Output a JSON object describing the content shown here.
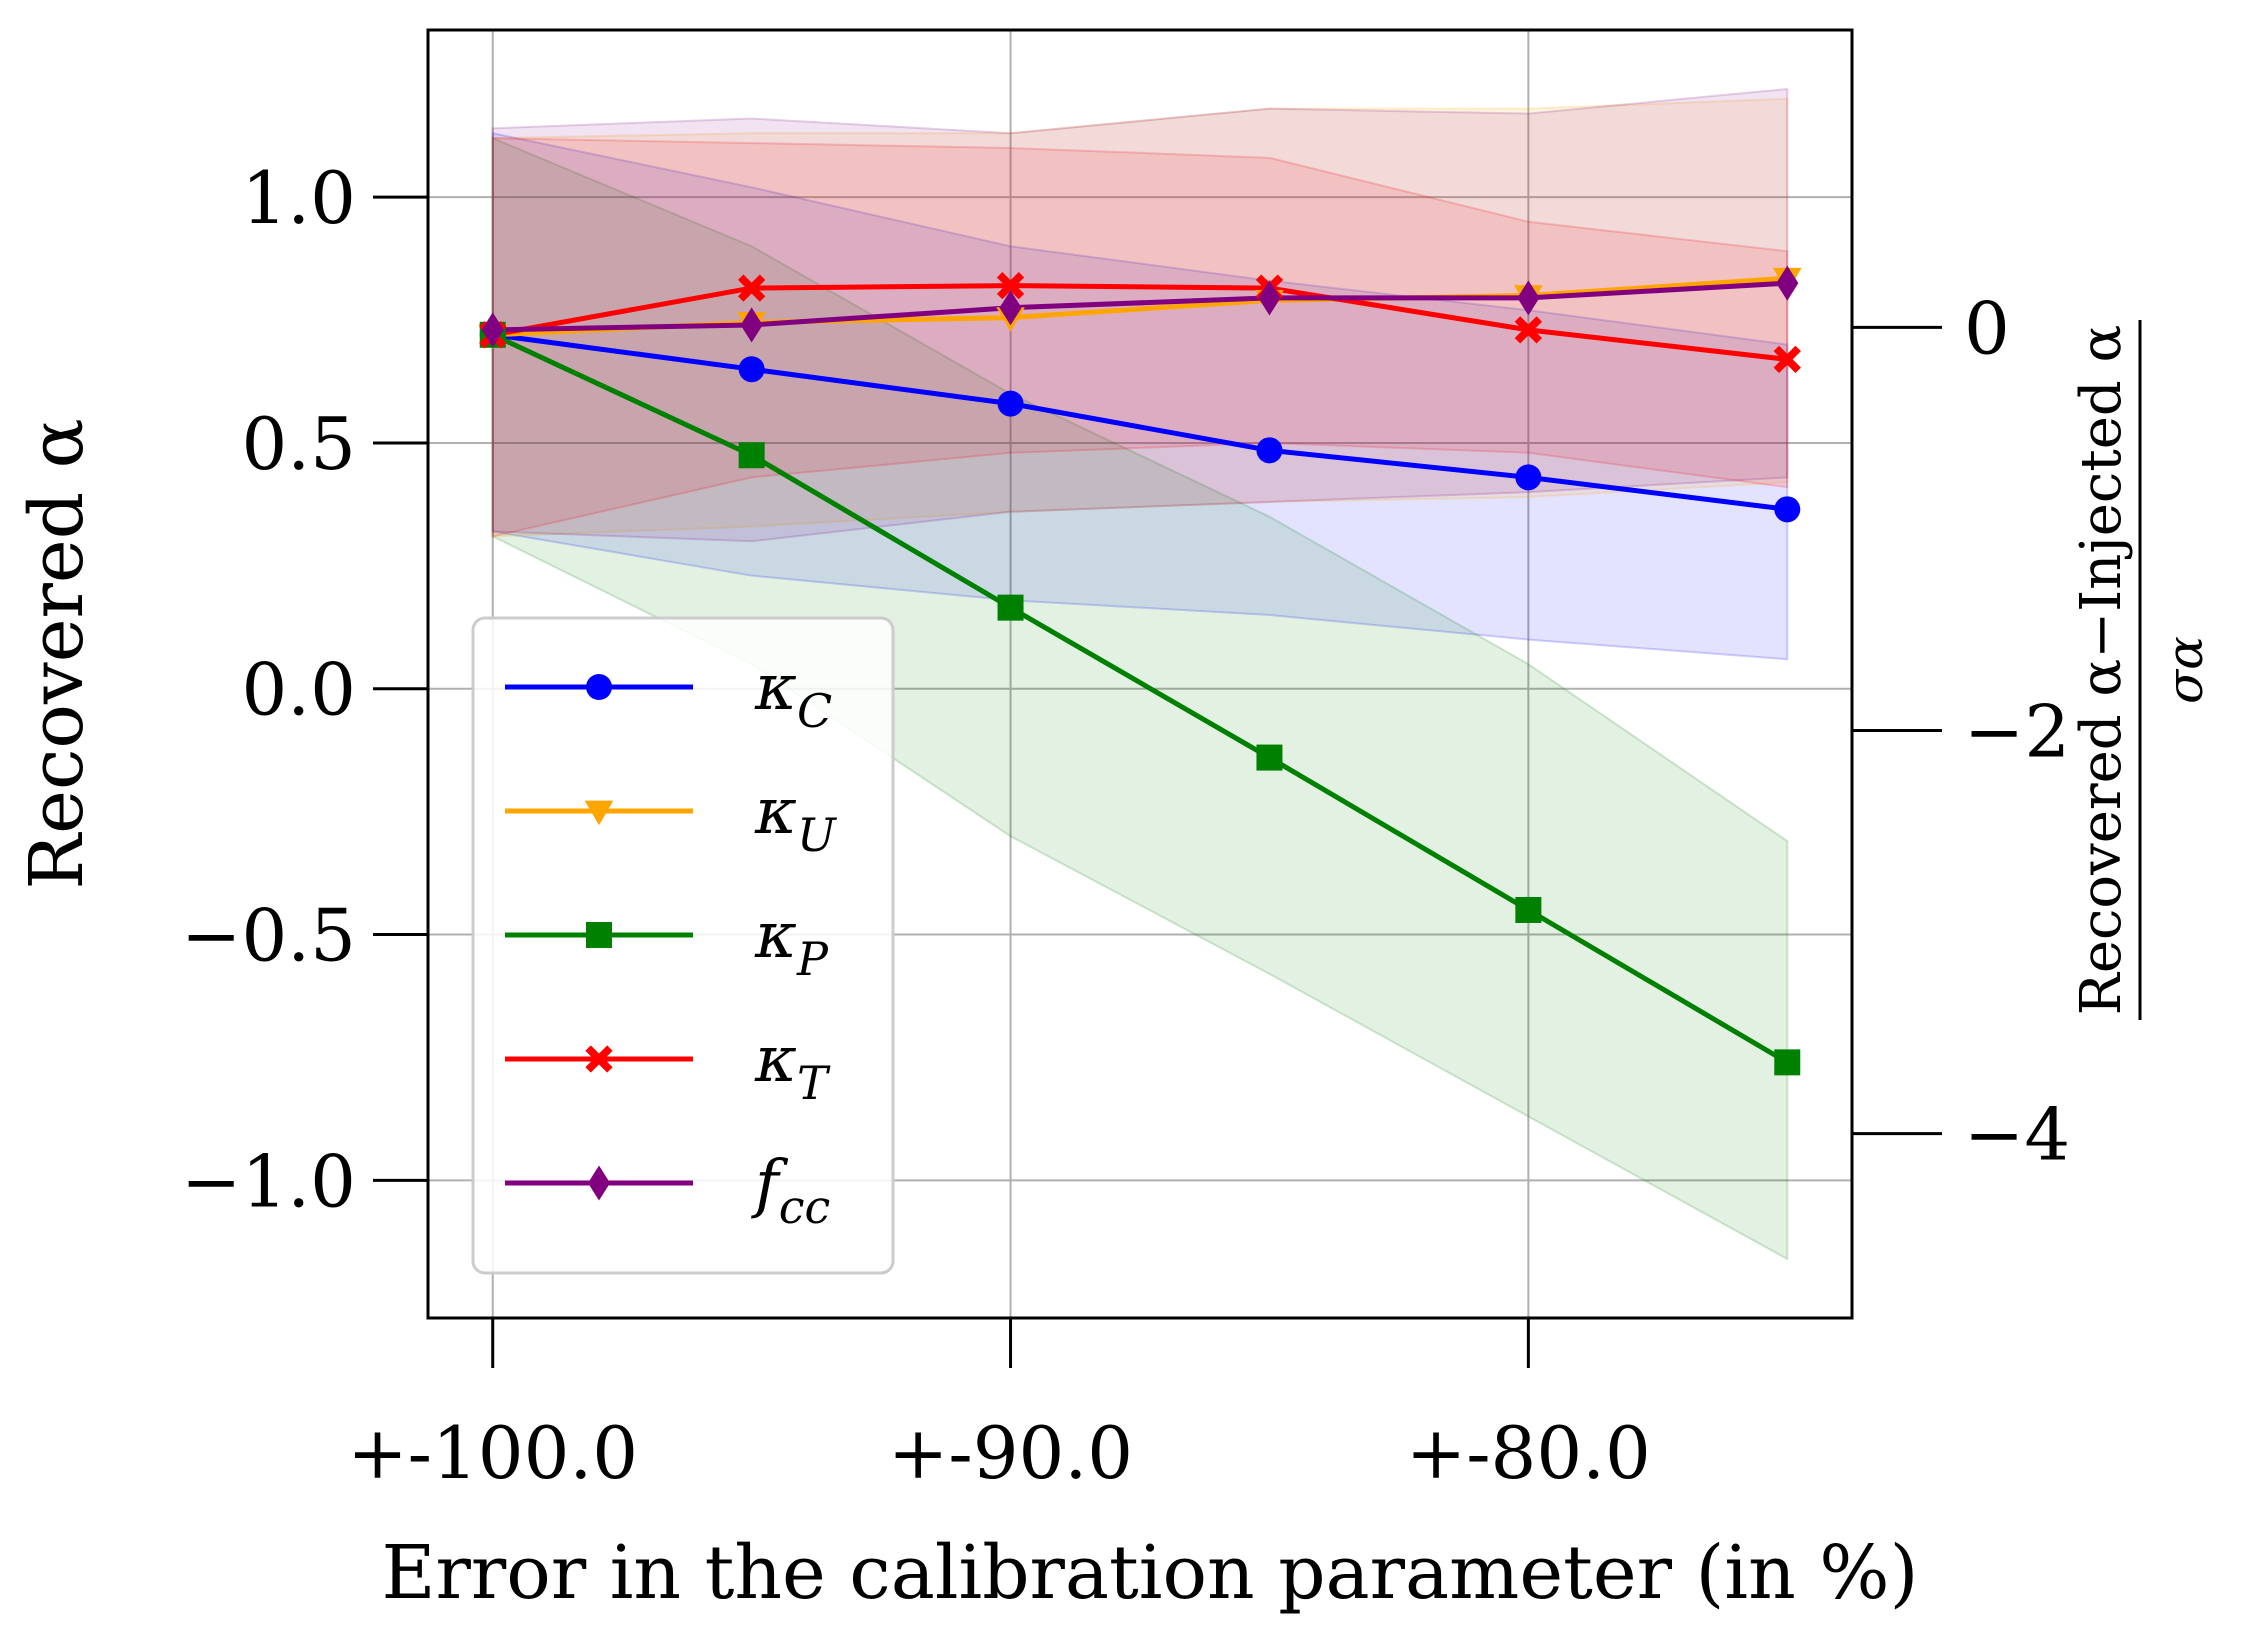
{
  "chart_data": {
    "type": "line",
    "xlabel": "Error in the calibration parameter (in %)",
    "ylabel": "Recovered α",
    "y2label_numerator": "Recovered α−Injected α",
    "y2label_denominator": "σα",
    "x_ticks": [
      {
        "value": 0,
        "label": "+-100.0"
      },
      {
        "value": 2,
        "label": "+-90.0"
      },
      {
        "value": 4,
        "label": "+-80.0"
      }
    ],
    "xlim": [
      -0.25,
      5.25
    ],
    "ylim": [
      -1.28,
      1.34
    ],
    "y_ticks": [
      {
        "value": 1.0,
        "label": "1.0"
      },
      {
        "value": 0.5,
        "label": "0.5"
      },
      {
        "value": 0.0,
        "label": "0.0"
      },
      {
        "value": -0.5,
        "label": "−0.5"
      },
      {
        "value": -1.0,
        "label": "−1.0"
      }
    ],
    "y2_ticks": [
      {
        "value": 0,
        "label": "0"
      },
      {
        "value": -2,
        "label": "−2"
      },
      {
        "value": -4,
        "label": "−4"
      }
    ],
    "y2_mapping": {
      "zero_at": 0.735,
      "scale": 0.41
    },
    "grid": true,
    "legend_position": "center-left",
    "x": [
      0,
      1,
      2,
      3,
      4,
      5
    ],
    "series": [
      {
        "name": "κC",
        "base": "κ",
        "sub": "C",
        "color": "#0000ff",
        "marker": "circle",
        "values": [
          0.72,
          0.65,
          0.58,
          0.485,
          0.43,
          0.365
        ],
        "band_upper": [
          1.13,
          1.02,
          0.9,
          0.83,
          0.77,
          0.7
        ],
        "band_lower": [
          0.32,
          0.23,
          0.18,
          0.15,
          0.1,
          0.06
        ]
      },
      {
        "name": "κU",
        "base": "κ",
        "sub": "U",
        "color": "#ffa500",
        "marker": "triangle-down",
        "values": [
          0.72,
          0.745,
          0.755,
          0.79,
          0.8,
          0.835
        ],
        "band_upper": [
          1.12,
          1.13,
          1.13,
          1.18,
          1.18,
          1.2
        ],
        "band_lower": [
          0.31,
          0.33,
          0.36,
          0.38,
          0.39,
          0.42
        ]
      },
      {
        "name": "κP",
        "base": "κ",
        "sub": "P",
        "color": "#008000",
        "marker": "square",
        "values": [
          0.72,
          0.475,
          0.165,
          -0.14,
          -0.45,
          -0.76
        ],
        "band_upper": [
          1.12,
          0.9,
          0.6,
          0.35,
          0.05,
          -0.31
        ],
        "band_lower": [
          0.31,
          0.05,
          -0.3,
          -0.58,
          -0.87,
          -1.16
        ]
      },
      {
        "name": "κT",
        "base": "κ",
        "sub": "T",
        "color": "#ff0000",
        "marker": "x-filled",
        "values": [
          0.72,
          0.815,
          0.82,
          0.815,
          0.73,
          0.67
        ],
        "band_upper": [
          1.12,
          1.11,
          1.1,
          1.08,
          0.95,
          0.89
        ],
        "band_lower": [
          0.31,
          0.43,
          0.48,
          0.5,
          0.48,
          0.41
        ]
      },
      {
        "name": "fcc",
        "base": "f",
        "sub": "cc",
        "color": "#800080",
        "marker": "diamond",
        "values": [
          0.73,
          0.74,
          0.775,
          0.795,
          0.795,
          0.825
        ],
        "band_upper": [
          1.14,
          1.16,
          1.13,
          1.18,
          1.17,
          1.22
        ],
        "band_lower": [
          0.32,
          0.3,
          0.36,
          0.38,
          0.4,
          0.43
        ]
      }
    ]
  }
}
